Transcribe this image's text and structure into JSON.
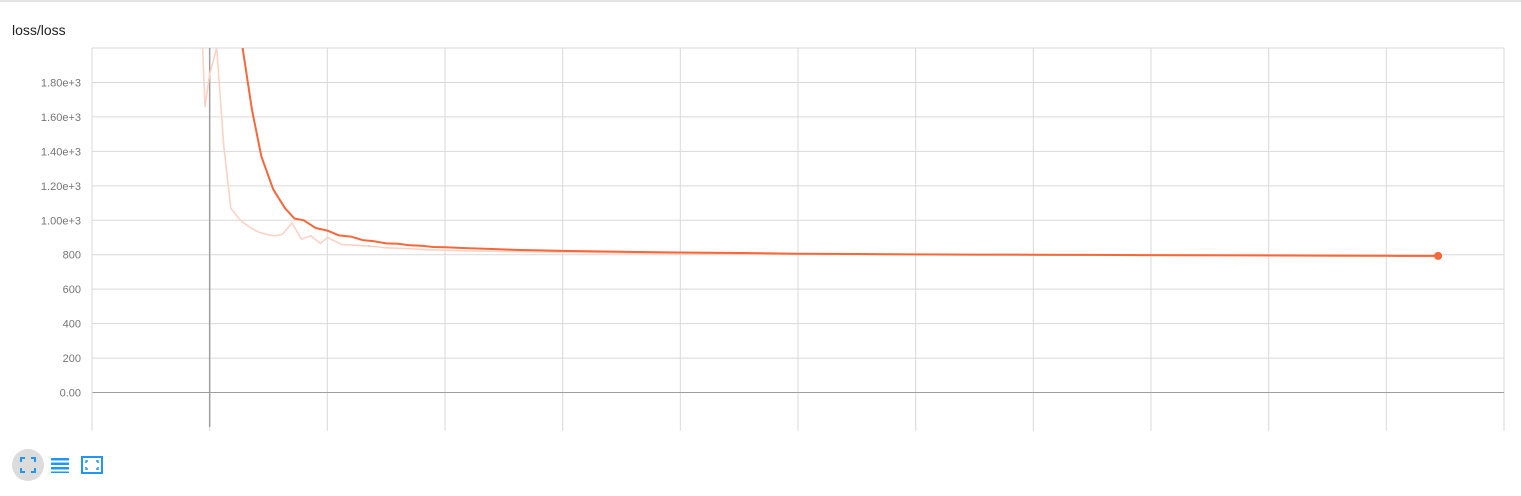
{
  "chart_title": "loss/loss",
  "colors": {
    "smoothed": "#f4683a",
    "raw": "#fbd3c5",
    "grid": "#d9d9d9",
    "axis": "#9e9e9e",
    "icon": "#2196f3"
  },
  "toolbar": [
    {
      "icon": "fit-to-screen-icon",
      "active": true
    },
    {
      "icon": "list-icon",
      "active": false
    },
    {
      "icon": "zoom-to-fit-icon",
      "active": false
    }
  ],
  "chart_data": {
    "type": "line",
    "title": "loss/loss",
    "xlabel": "",
    "ylabel": "",
    "ylim": [
      -200,
      2000
    ],
    "y_ticks": [
      0,
      200,
      400,
      600,
      800,
      1000,
      1200,
      1400,
      1600,
      1800
    ],
    "y_tick_labels": [
      "0.00",
      "200",
      "400",
      "600",
      "800",
      "1.00e+3",
      "1.20e+3",
      "1.40e+3",
      "1.60e+3",
      "1.80e+3"
    ],
    "x_tick_labels": [],
    "grid": true,
    "legend": "none",
    "series": [
      {
        "kind": "raw",
        "x": [
          0.94,
          0.96,
          1.0,
          1.06,
          1.12,
          1.18,
          1.26,
          1.34,
          1.42,
          1.5,
          1.56,
          1.62,
          1.7,
          1.78,
          1.86,
          1.94,
          2.0,
          2.12,
          2.24,
          2.36,
          2.5,
          2.7,
          2.9,
          3.2,
          3.6,
          4.0,
          4.5,
          5.0,
          6.0,
          7.0,
          8.0,
          9.0,
          10.0,
          11.0,
          11.44
        ],
        "values": [
          2000,
          1660,
          1850,
          2000,
          1430,
          1070,
          1000,
          960,
          930,
          915,
          910,
          920,
          985,
          890,
          910,
          865,
          900,
          860,
          855,
          850,
          840,
          835,
          828,
          822,
          818,
          814,
          810,
          806,
          803,
          800,
          798,
          796,
          794,
          792,
          790
        ]
      },
      {
        "kind": "smoothed",
        "x": [
          1.28,
          1.36,
          1.44,
          1.54,
          1.64,
          1.72,
          1.8,
          1.9,
          2.0,
          2.1,
          2.2,
          2.3,
          2.4,
          2.5,
          2.6,
          2.7,
          2.8,
          2.9,
          3.0,
          3.2,
          3.4,
          3.6,
          3.8,
          4.0,
          4.5,
          5.0,
          5.5,
          6.0,
          6.5,
          7.0,
          7.5,
          8.0,
          8.5,
          9.0,
          9.5,
          10.0,
          10.5,
          11.0,
          11.44
        ],
        "values": [
          2000,
          1640,
          1370,
          1180,
          1070,
          1010,
          1000,
          955,
          940,
          912,
          905,
          885,
          878,
          866,
          864,
          855,
          852,
          845,
          843,
          838,
          833,
          828,
          825,
          822,
          817,
          813,
          810,
          806,
          804,
          802,
          801,
          800,
          799,
          798,
          797,
          796,
          795,
          794,
          793
        ]
      }
    ]
  }
}
